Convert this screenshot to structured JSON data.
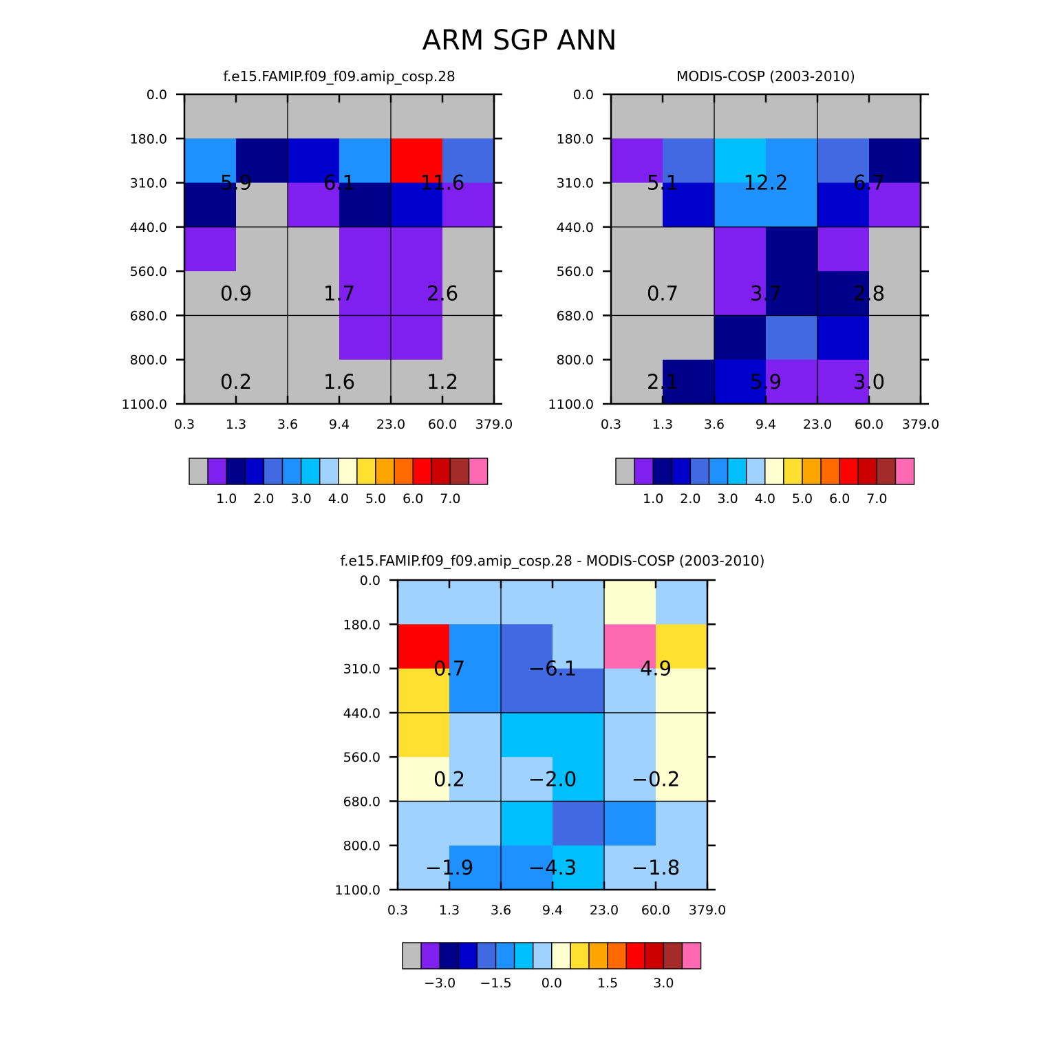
{
  "title": "ARM SGP ANN",
  "chart_data": [
    {
      "type": "heatmap",
      "title": "f.e15.FAMIP.f09_f09.amip_cosp.28",
      "x_ticks": [
        "0.3",
        "1.3",
        "3.6",
        "9.4",
        "23.0",
        "60.0",
        "379.0"
      ],
      "y_ticks": [
        "0.0",
        "180.0",
        "310.0",
        "440.0",
        "560.0",
        "680.0",
        "800.0",
        "1100.0"
      ],
      "cell_color_index": [
        [
          0,
          0,
          0,
          0,
          0,
          0
        ],
        [
          5,
          2,
          3,
          5,
          12,
          4
        ],
        [
          2,
          0,
          1,
          2,
          3,
          1
        ],
        [
          1,
          0,
          0,
          1,
          1,
          0
        ],
        [
          0,
          0,
          0,
          1,
          1,
          0
        ],
        [
          0,
          0,
          0,
          1,
          1,
          0
        ],
        [
          0,
          0,
          0,
          0,
          0,
          0
        ]
      ],
      "cell_labels": [
        {
          "row": 1.5,
          "col": 1,
          "text": "5.9"
        },
        {
          "row": 1.5,
          "col": 3,
          "text": "6.1"
        },
        {
          "row": 1.5,
          "col": 5,
          "text": "11.6"
        },
        {
          "row": 4,
          "col": 1,
          "text": "0.9"
        },
        {
          "row": 4,
          "col": 3,
          "text": "1.7"
        },
        {
          "row": 4,
          "col": 5,
          "text": "2.6"
        },
        {
          "row": 6,
          "col": 1,
          "text": "0.2"
        },
        {
          "row": 6,
          "col": 3,
          "text": "1.6"
        },
        {
          "row": 6,
          "col": 5,
          "text": "1.2"
        }
      ],
      "colorbar": {
        "colors": [
          "#bebebe",
          "#8020f0",
          "#00008b",
          "#0000cd",
          "#4169e1",
          "#1e90ff",
          "#00bfff",
          "#a0d2ff",
          "#ffffd0",
          "#ffe030",
          "#ffa500",
          "#ff6a00",
          "#ff0000",
          "#cd0000",
          "#a52a2a",
          "#ff69b4"
        ],
        "labels": [
          {
            "after_box": 2,
            "text": "1.0"
          },
          {
            "after_box": 4,
            "text": "2.0"
          },
          {
            "after_box": 6,
            "text": "3.0"
          },
          {
            "after_box": 8,
            "text": "4.0"
          },
          {
            "after_box": 10,
            "text": "5.0"
          },
          {
            "after_box": 12,
            "text": "6.0"
          },
          {
            "after_box": 14,
            "text": "7.0"
          }
        ]
      }
    },
    {
      "type": "heatmap",
      "title": "MODIS-COSP (2003-2010)",
      "x_ticks": [
        "0.3",
        "1.3",
        "3.6",
        "9.4",
        "23.0",
        "60.0",
        "379.0"
      ],
      "y_ticks": [
        "0.0",
        "180.0",
        "310.0",
        "440.0",
        "560.0",
        "680.0",
        "800.0",
        "1100.0"
      ],
      "cell_color_index": [
        [
          0,
          0,
          0,
          0,
          0,
          0
        ],
        [
          1,
          4,
          6,
          5,
          4,
          2
        ],
        [
          0,
          3,
          5,
          5,
          3,
          1
        ],
        [
          0,
          0,
          1,
          2,
          1,
          0
        ],
        [
          0,
          0,
          1,
          2,
          2,
          0
        ],
        [
          0,
          0,
          2,
          4,
          3,
          0
        ],
        [
          0,
          2,
          3,
          1,
          1,
          0
        ]
      ],
      "cell_labels": [
        {
          "row": 1.5,
          "col": 1,
          "text": "5.1"
        },
        {
          "row": 1.5,
          "col": 3,
          "text": "12.2"
        },
        {
          "row": 1.5,
          "col": 5,
          "text": "6.7"
        },
        {
          "row": 4,
          "col": 1,
          "text": "0.7"
        },
        {
          "row": 4,
          "col": 3,
          "text": "3.7"
        },
        {
          "row": 4,
          "col": 5,
          "text": "2.8"
        },
        {
          "row": 6,
          "col": 1,
          "text": "2.1"
        },
        {
          "row": 6,
          "col": 3,
          "text": "5.9"
        },
        {
          "row": 6,
          "col": 5,
          "text": "3.0"
        }
      ],
      "colorbar": {
        "colors": [
          "#bebebe",
          "#8020f0",
          "#00008b",
          "#0000cd",
          "#4169e1",
          "#1e90ff",
          "#00bfff",
          "#a0d2ff",
          "#ffffd0",
          "#ffe030",
          "#ffa500",
          "#ff6a00",
          "#ff0000",
          "#cd0000",
          "#a52a2a",
          "#ff69b4"
        ],
        "labels": [
          {
            "after_box": 2,
            "text": "1.0"
          },
          {
            "after_box": 4,
            "text": "2.0"
          },
          {
            "after_box": 6,
            "text": "3.0"
          },
          {
            "after_box": 8,
            "text": "4.0"
          },
          {
            "after_box": 10,
            "text": "5.0"
          },
          {
            "after_box": 12,
            "text": "6.0"
          },
          {
            "after_box": 14,
            "text": "7.0"
          }
        ]
      }
    },
    {
      "type": "heatmap",
      "title": "f.e15.FAMIP.f09_f09.amip_cosp.28 - MODIS-COSP (2003-2010)",
      "x_ticks": [
        "0.3",
        "1.3",
        "3.6",
        "9.4",
        "23.0",
        "60.0",
        "379.0"
      ],
      "y_ticks": [
        "0.0",
        "180.0",
        "310.0",
        "440.0",
        "560.0",
        "680.0",
        "800.0",
        "1100.0"
      ],
      "cell_color_index": [
        [
          7,
          7,
          7,
          7,
          8,
          7
        ],
        [
          12,
          5,
          4,
          7,
          15,
          9
        ],
        [
          9,
          5,
          4,
          4,
          7,
          8
        ],
        [
          9,
          7,
          6,
          6,
          7,
          8
        ],
        [
          8,
          7,
          7,
          6,
          7,
          8
        ],
        [
          7,
          7,
          6,
          4,
          5,
          7
        ],
        [
          7,
          5,
          5,
          6,
          7,
          7
        ]
      ],
      "cell_labels": [
        {
          "row": 1.5,
          "col": 1,
          "text": "0.7"
        },
        {
          "row": 1.5,
          "col": 3,
          "text": "-6.1"
        },
        {
          "row": 1.5,
          "col": 5,
          "text": "4.9"
        },
        {
          "row": 4,
          "col": 1,
          "text": "0.2"
        },
        {
          "row": 4,
          "col": 3,
          "text": "-2.0"
        },
        {
          "row": 4,
          "col": 5,
          "text": "-0.2"
        },
        {
          "row": 6,
          "col": 1,
          "text": "-1.9"
        },
        {
          "row": 6,
          "col": 3,
          "text": "-4.3"
        },
        {
          "row": 6,
          "col": 5,
          "text": "-1.8"
        }
      ],
      "colorbar": {
        "colors": [
          "#bebebe",
          "#8020f0",
          "#00008b",
          "#0000cd",
          "#4169e1",
          "#1e90ff",
          "#00bfff",
          "#a0d2ff",
          "#ffffd0",
          "#ffe030",
          "#ffa500",
          "#ff6a00",
          "#ff0000",
          "#cd0000",
          "#a52a2a",
          "#ff69b4"
        ],
        "labels": [
          {
            "after_box": 2,
            "text": "-3.0"
          },
          {
            "after_box": 5,
            "text": "-1.5"
          },
          {
            "after_box": 8,
            "text": "0.0"
          },
          {
            "after_box": 11,
            "text": "1.5"
          },
          {
            "after_box": 14,
            "text": "3.0"
          }
        ]
      }
    }
  ]
}
